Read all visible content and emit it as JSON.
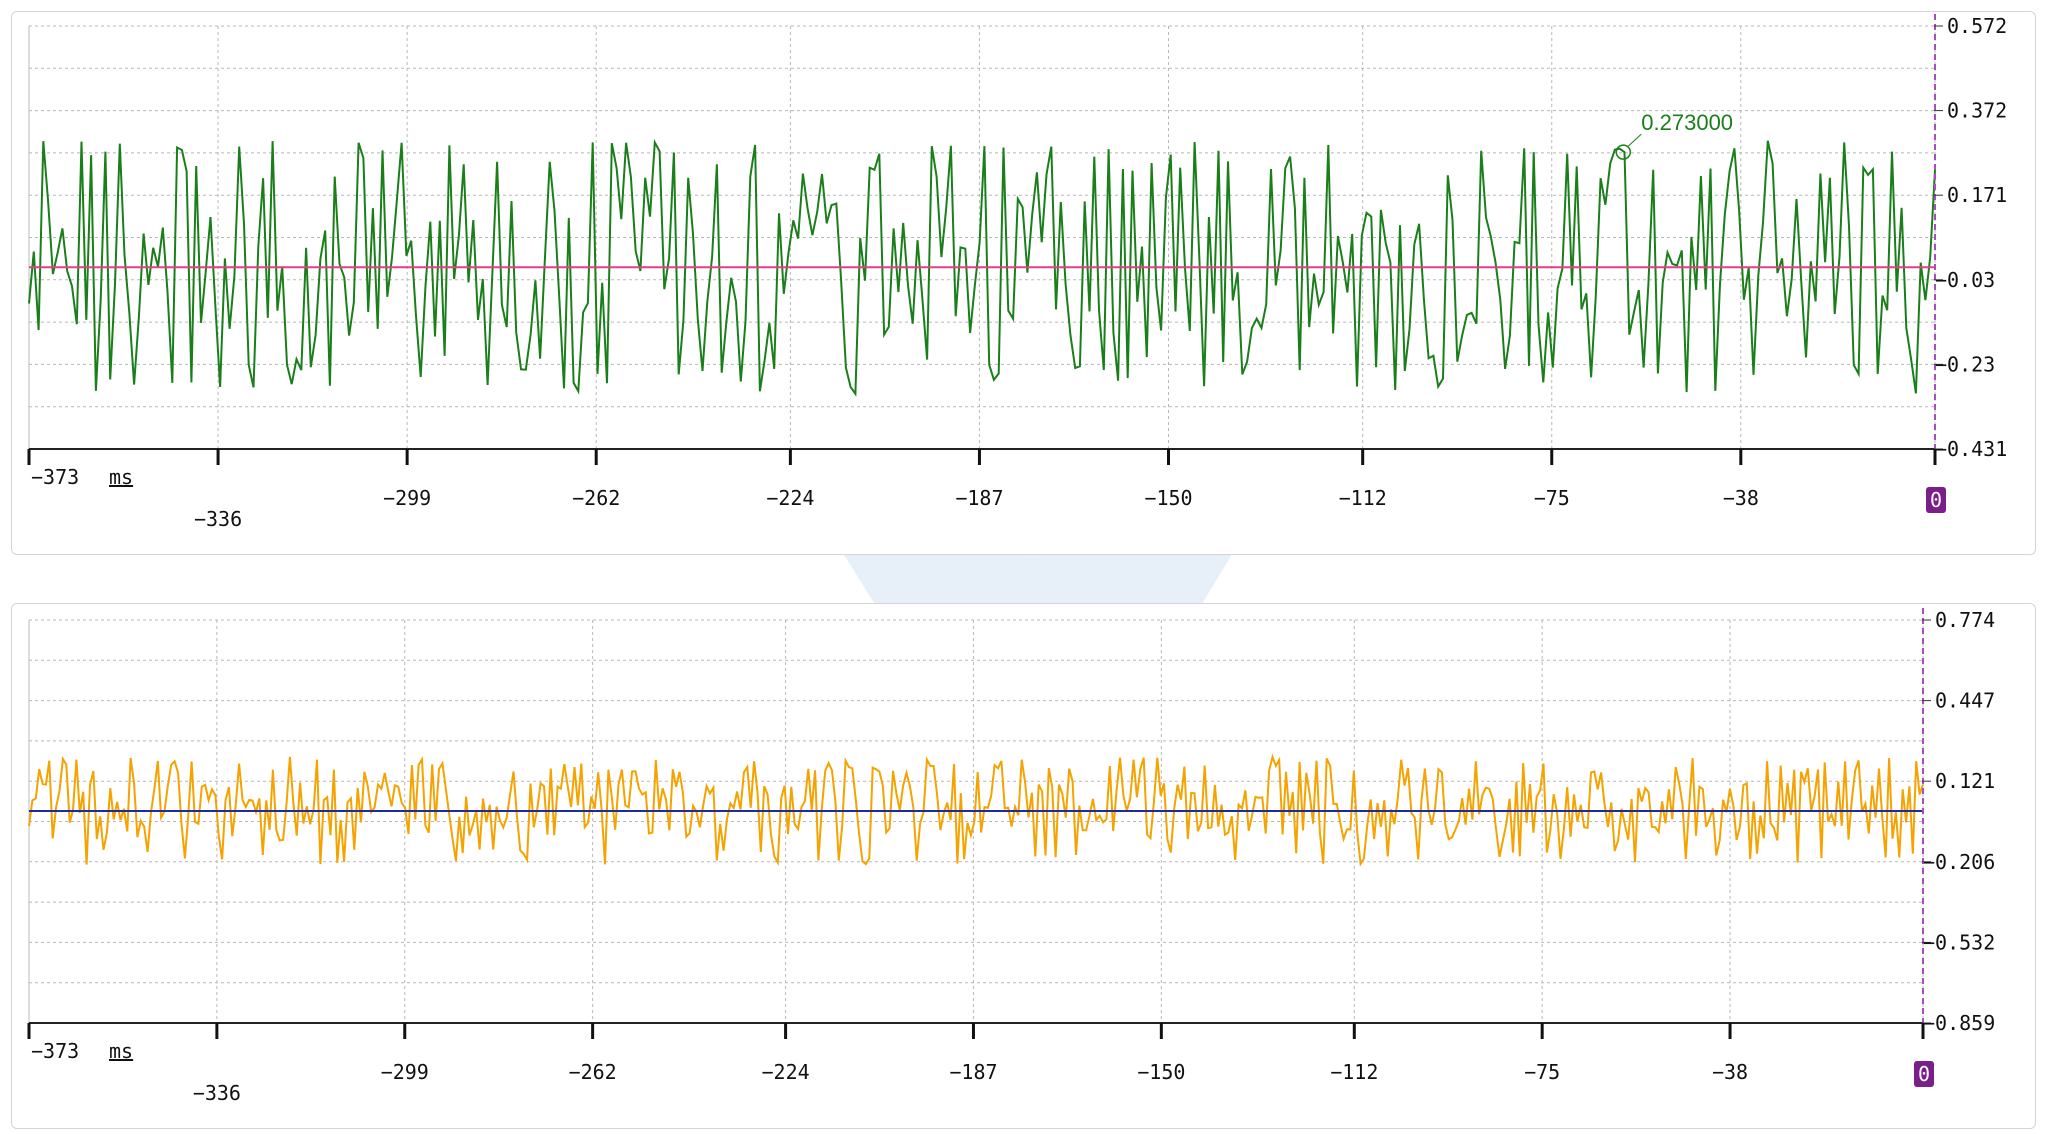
{
  "units_label": "ms",
  "x_ticks": [
    "-373",
    "-336",
    "-299",
    "-262",
    "-224",
    "-187",
    "-150",
    "-112",
    "-75",
    "-38",
    "0"
  ],
  "chart_data": [
    {
      "type": "line",
      "series": [
        {
          "color": "#1a7f1a",
          "values": []
        }
      ],
      "xlim": [
        -373,
        0
      ],
      "ylim": [
        -0.431,
        0.572
      ],
      "y_ticks": [
        "0.572",
        "0.372",
        "0.171",
        "-0.03",
        "-0.23",
        "-0.431"
      ],
      "x_ticks": [
        "-373",
        "-336",
        "-299",
        "-262",
        "-224",
        "-187",
        "-150",
        "-112",
        "-75",
        "-38",
        "0"
      ],
      "xlabel": "ms",
      "baseline": 0.0,
      "baseline_color": "#e0408a",
      "annotation": {
        "x": -61,
        "y": 0.273,
        "text": "0.273000"
      },
      "cursor_label": "0",
      "grid": true
    },
    {
      "type": "line",
      "series": [
        {
          "color": "#f5a300",
          "values": []
        }
      ],
      "xlim": [
        -373,
        0
      ],
      "ylim": [
        -0.859,
        0.774
      ],
      "y_ticks": [
        "0.774",
        "0.447",
        "0.121",
        "-0.206",
        "-0.532",
        "-0.859"
      ],
      "x_ticks": [
        "-373",
        "-336",
        "-299",
        "-262",
        "-224",
        "-187",
        "-150",
        "-112",
        "-75",
        "-38",
        "0"
      ],
      "xlabel": "ms",
      "baseline": 0.0,
      "baseline_color": "#1f2a9c",
      "cursor_label": "0",
      "grid": true
    }
  ]
}
